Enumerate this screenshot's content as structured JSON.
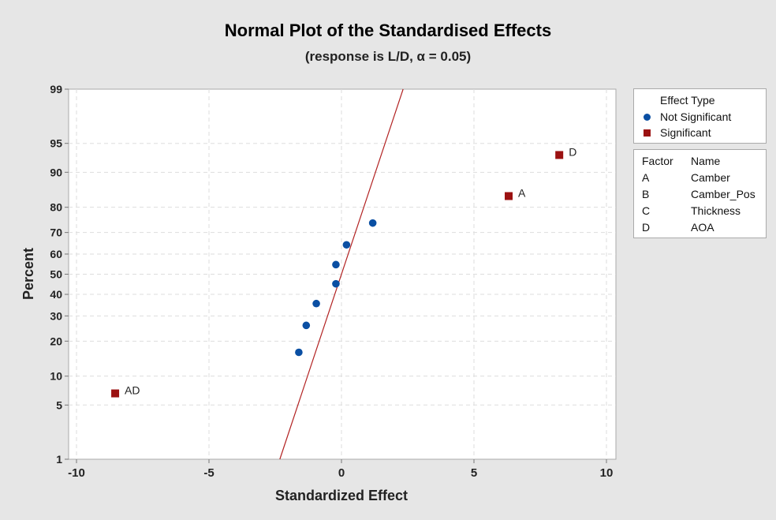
{
  "chart_data": {
    "type": "scatter",
    "title": "Normal Plot of the Standardised Effects",
    "subtitle": "(response is L/D, α = 0.05)",
    "xlabel": "Standardized Effect",
    "ylabel": "Percent",
    "xlim": [
      -10.4,
      10.4
    ],
    "ylim": [
      1,
      99
    ],
    "y_scale": "normal probability",
    "x_ticks": [
      "-10",
      "-5",
      "0",
      "5",
      "10"
    ],
    "x_tick_values": [
      -10,
      -5,
      0,
      5,
      10
    ],
    "y_ticks": [
      "1",
      "5",
      "10",
      "20",
      "30",
      "40",
      "50",
      "60",
      "70",
      "80",
      "90",
      "95",
      "99"
    ],
    "y_tick_values": [
      1,
      5,
      10,
      20,
      30,
      40,
      50,
      60,
      70,
      80,
      90,
      95,
      99
    ],
    "grid": true,
    "reference_line": {
      "mean": 0,
      "sd": 1.0,
      "color": "#b22222"
    },
    "series": [
      {
        "name": "Not Significant",
        "marker": "circle",
        "color": "#0a4fa3",
        "points": [
          {
            "x": -1.61,
            "y": 16.3
          },
          {
            "x": -1.33,
            "y": 26.0
          },
          {
            "x": -0.95,
            "y": 35.6
          },
          {
            "x": -0.21,
            "y": 45.2
          },
          {
            "x": -0.21,
            "y": 54.8
          },
          {
            "x": 0.19,
            "y": 64.4
          },
          {
            "x": 1.18,
            "y": 74.0
          }
        ]
      },
      {
        "name": "Significant",
        "marker": "square",
        "color": "#9b1111",
        "points": [
          {
            "x": -8.54,
            "y": 6.7,
            "label": "AD"
          },
          {
            "x": 6.31,
            "y": 83.7,
            "label": "A"
          },
          {
            "x": 8.22,
            "y": 93.3,
            "label": "D"
          }
        ]
      }
    ],
    "legend": {
      "position": "right",
      "title": "Effect Type",
      "entries": [
        "Not Significant",
        "Significant"
      ]
    },
    "factor_table": {
      "headers": [
        "Factor",
        "Name"
      ],
      "rows": [
        [
          "A",
          "Camber"
        ],
        [
          "B",
          "Camber_Pos"
        ],
        [
          "C",
          "Thickness"
        ],
        [
          "D",
          "AOA"
        ]
      ]
    }
  }
}
